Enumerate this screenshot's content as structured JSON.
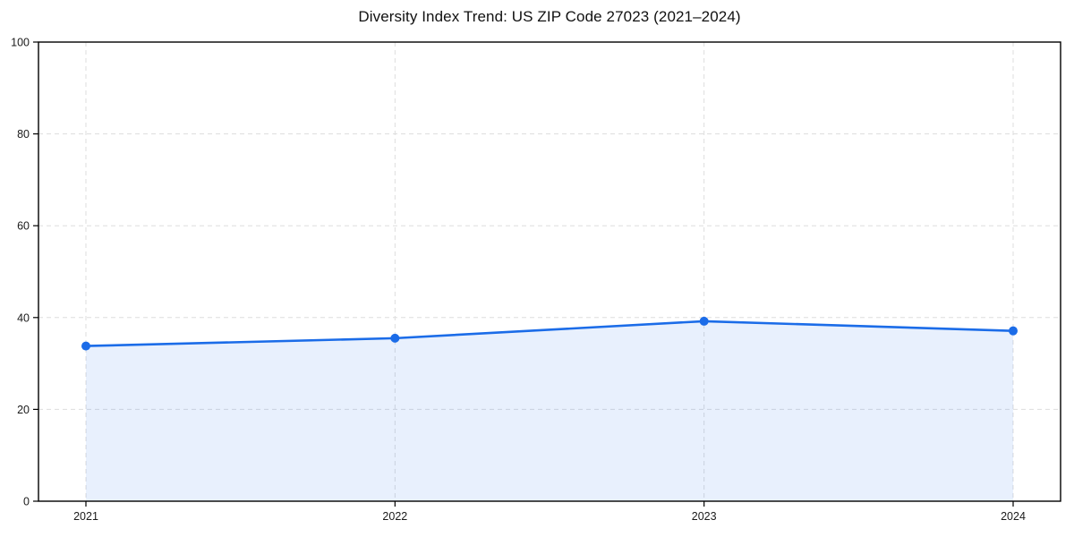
{
  "chart": {
    "title": "Diversity Index Trend: US ZIP Code 27023 (2021–2024)"
  },
  "chart_data": {
    "type": "area",
    "x": [
      "2021",
      "2022",
      "2023",
      "2024"
    ],
    "values": [
      33.8,
      35.5,
      39.2,
      37.1
    ],
    "series": [
      {
        "name": "Diversity Index",
        "values": [
          33.8,
          35.5,
          39.2,
          37.1
        ]
      }
    ],
    "title": "Diversity Index Trend: US ZIP Code 27023 (2021–2024)",
    "xlabel": "",
    "ylabel": "",
    "ylim": [
      0,
      100
    ],
    "yticks": [
      0,
      20,
      40,
      60,
      80,
      100
    ],
    "grid": "dashed-both",
    "legend": "none",
    "colors": {
      "line": "#1b6ce8",
      "marker": "#1b6ce8",
      "fill": "rgba(27,108,232,0.10)",
      "gridline": "#dddddd",
      "axis": "#000000",
      "text": "#1a1a1a",
      "background": "#ffffff"
    }
  }
}
